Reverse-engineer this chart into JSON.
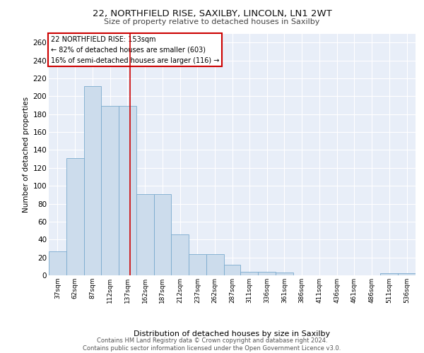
{
  "title1": "22, NORTHFIELD RISE, SAXILBY, LINCOLN, LN1 2WT",
  "title2": "Size of property relative to detached houses in Saxilby",
  "xlabel": "Distribution of detached houses by size in Saxilby",
  "ylabel": "Number of detached properties",
  "bar_color": "#ccdcec",
  "bar_edge_color": "#7aaace",
  "background_color": "#e8eef8",
  "grid_color": "#ffffff",
  "bin_labels": [
    "37sqm",
    "62sqm",
    "87sqm",
    "112sqm",
    "137sqm",
    "162sqm",
    "187sqm",
    "212sqm",
    "237sqm",
    "262sqm",
    "287sqm",
    "311sqm",
    "336sqm",
    "361sqm",
    "386sqm",
    "411sqm",
    "436sqm",
    "461sqm",
    "486sqm",
    "511sqm",
    "536sqm"
  ],
  "bar_values": [
    27,
    131,
    211,
    189,
    189,
    91,
    91,
    46,
    24,
    24,
    12,
    4,
    4,
    3,
    0,
    0,
    0,
    0,
    0,
    2,
    2
  ],
  "bin_edges": [
    37,
    62,
    87,
    112,
    137,
    162,
    187,
    212,
    237,
    262,
    287,
    311,
    336,
    361,
    386,
    411,
    436,
    461,
    486,
    511,
    536,
    561
  ],
  "red_line_x": 153,
  "annotation_text": "22 NORTHFIELD RISE: 153sqm\n← 82% of detached houses are smaller (603)\n16% of semi-detached houses are larger (116) →",
  "ylim": [
    0,
    270
  ],
  "yticks": [
    0,
    20,
    40,
    60,
    80,
    100,
    120,
    140,
    160,
    180,
    200,
    220,
    240,
    260
  ],
  "footer_text": "Contains HM Land Registry data © Crown copyright and database right 2024.\nContains public sector information licensed under the Open Government Licence v3.0.",
  "annotation_box_color": "#ffffff",
  "annotation_border_color": "#cc0000"
}
